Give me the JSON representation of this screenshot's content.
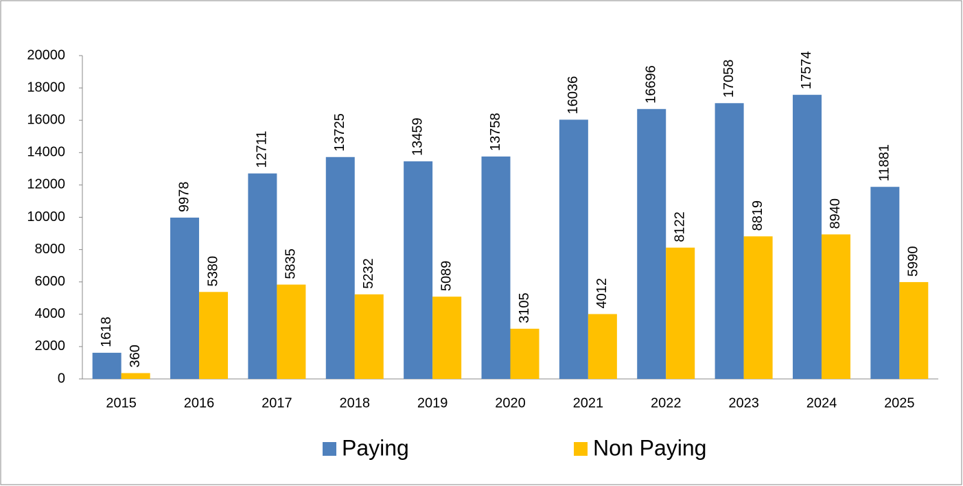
{
  "chart_data": {
    "type": "bar",
    "categories": [
      "2015",
      "2016",
      "2017",
      "2018",
      "2019",
      "2020",
      "2021",
      "2022",
      "2023",
      "2024",
      "2025"
    ],
    "series": [
      {
        "name": "Paying",
        "color": "#4f81bd",
        "values": [
          1618,
          9978,
          12711,
          13725,
          13459,
          13758,
          16036,
          16696,
          17058,
          17574,
          11881
        ]
      },
      {
        "name": "Non Paying",
        "color": "#ffc000",
        "values": [
          360,
          5380,
          5835,
          5232,
          5089,
          3105,
          4012,
          8122,
          8819,
          8940,
          5990
        ]
      }
    ],
    "ylim": [
      0,
      20000
    ],
    "yticks": [
      0,
      2000,
      4000,
      6000,
      8000,
      10000,
      12000,
      14000,
      16000,
      18000,
      20000
    ],
    "grid": false,
    "legend": "bottom"
  }
}
